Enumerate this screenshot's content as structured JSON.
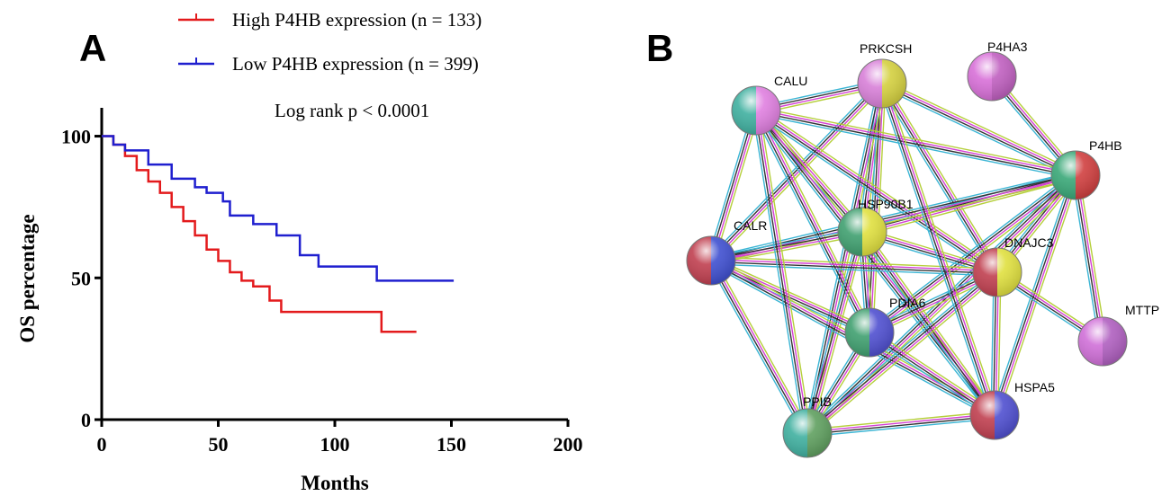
{
  "chart_data": {
    "type": "line",
    "label": "A",
    "step": true,
    "xlabel": "Months",
    "ylabel": "OS percentage",
    "annotation": "Log rank p < 0.0001",
    "xlim": [
      0,
      200
    ],
    "ylim": [
      0,
      110
    ],
    "xticks": [
      0,
      50,
      100,
      150,
      200
    ],
    "yticks": [
      0,
      50,
      100
    ],
    "series": [
      {
        "name": "High P4HB expression (n = 133)",
        "color": "#e31a1c",
        "x": [
          0,
          5,
          10,
          15,
          20,
          25,
          30,
          35,
          40,
          45,
          50,
          55,
          60,
          65,
          72,
          77,
          100,
          120,
          135
        ],
        "values": [
          100,
          97,
          93,
          88,
          84,
          80,
          75,
          70,
          65,
          60,
          56,
          52,
          49,
          47,
          42,
          38,
          38,
          31,
          31
        ]
      },
      {
        "name": "Low P4HB expression (n = 399)",
        "color": "#1f1fcf",
        "x": [
          0,
          5,
          10,
          20,
          30,
          40,
          45,
          52,
          55,
          65,
          75,
          85,
          93,
          118,
          151
        ],
        "values": [
          100,
          97,
          95,
          90,
          85,
          82,
          80,
          77,
          72,
          69,
          65,
          58,
          54,
          49,
          49
        ]
      }
    ]
  },
  "network": {
    "label": "B",
    "nodes": [
      {
        "label": "PRKCSH"
      },
      {
        "label": "P4HA3"
      },
      {
        "label": "CALU"
      },
      {
        "label": "P4HB"
      },
      {
        "label": "HSP90B1"
      },
      {
        "label": "CALR"
      },
      {
        "label": "DNAJC3"
      },
      {
        "label": "MTTP"
      },
      {
        "label": "PDIA6"
      },
      {
        "label": "PPIB"
      },
      {
        "label": "HSPA5"
      }
    ]
  }
}
